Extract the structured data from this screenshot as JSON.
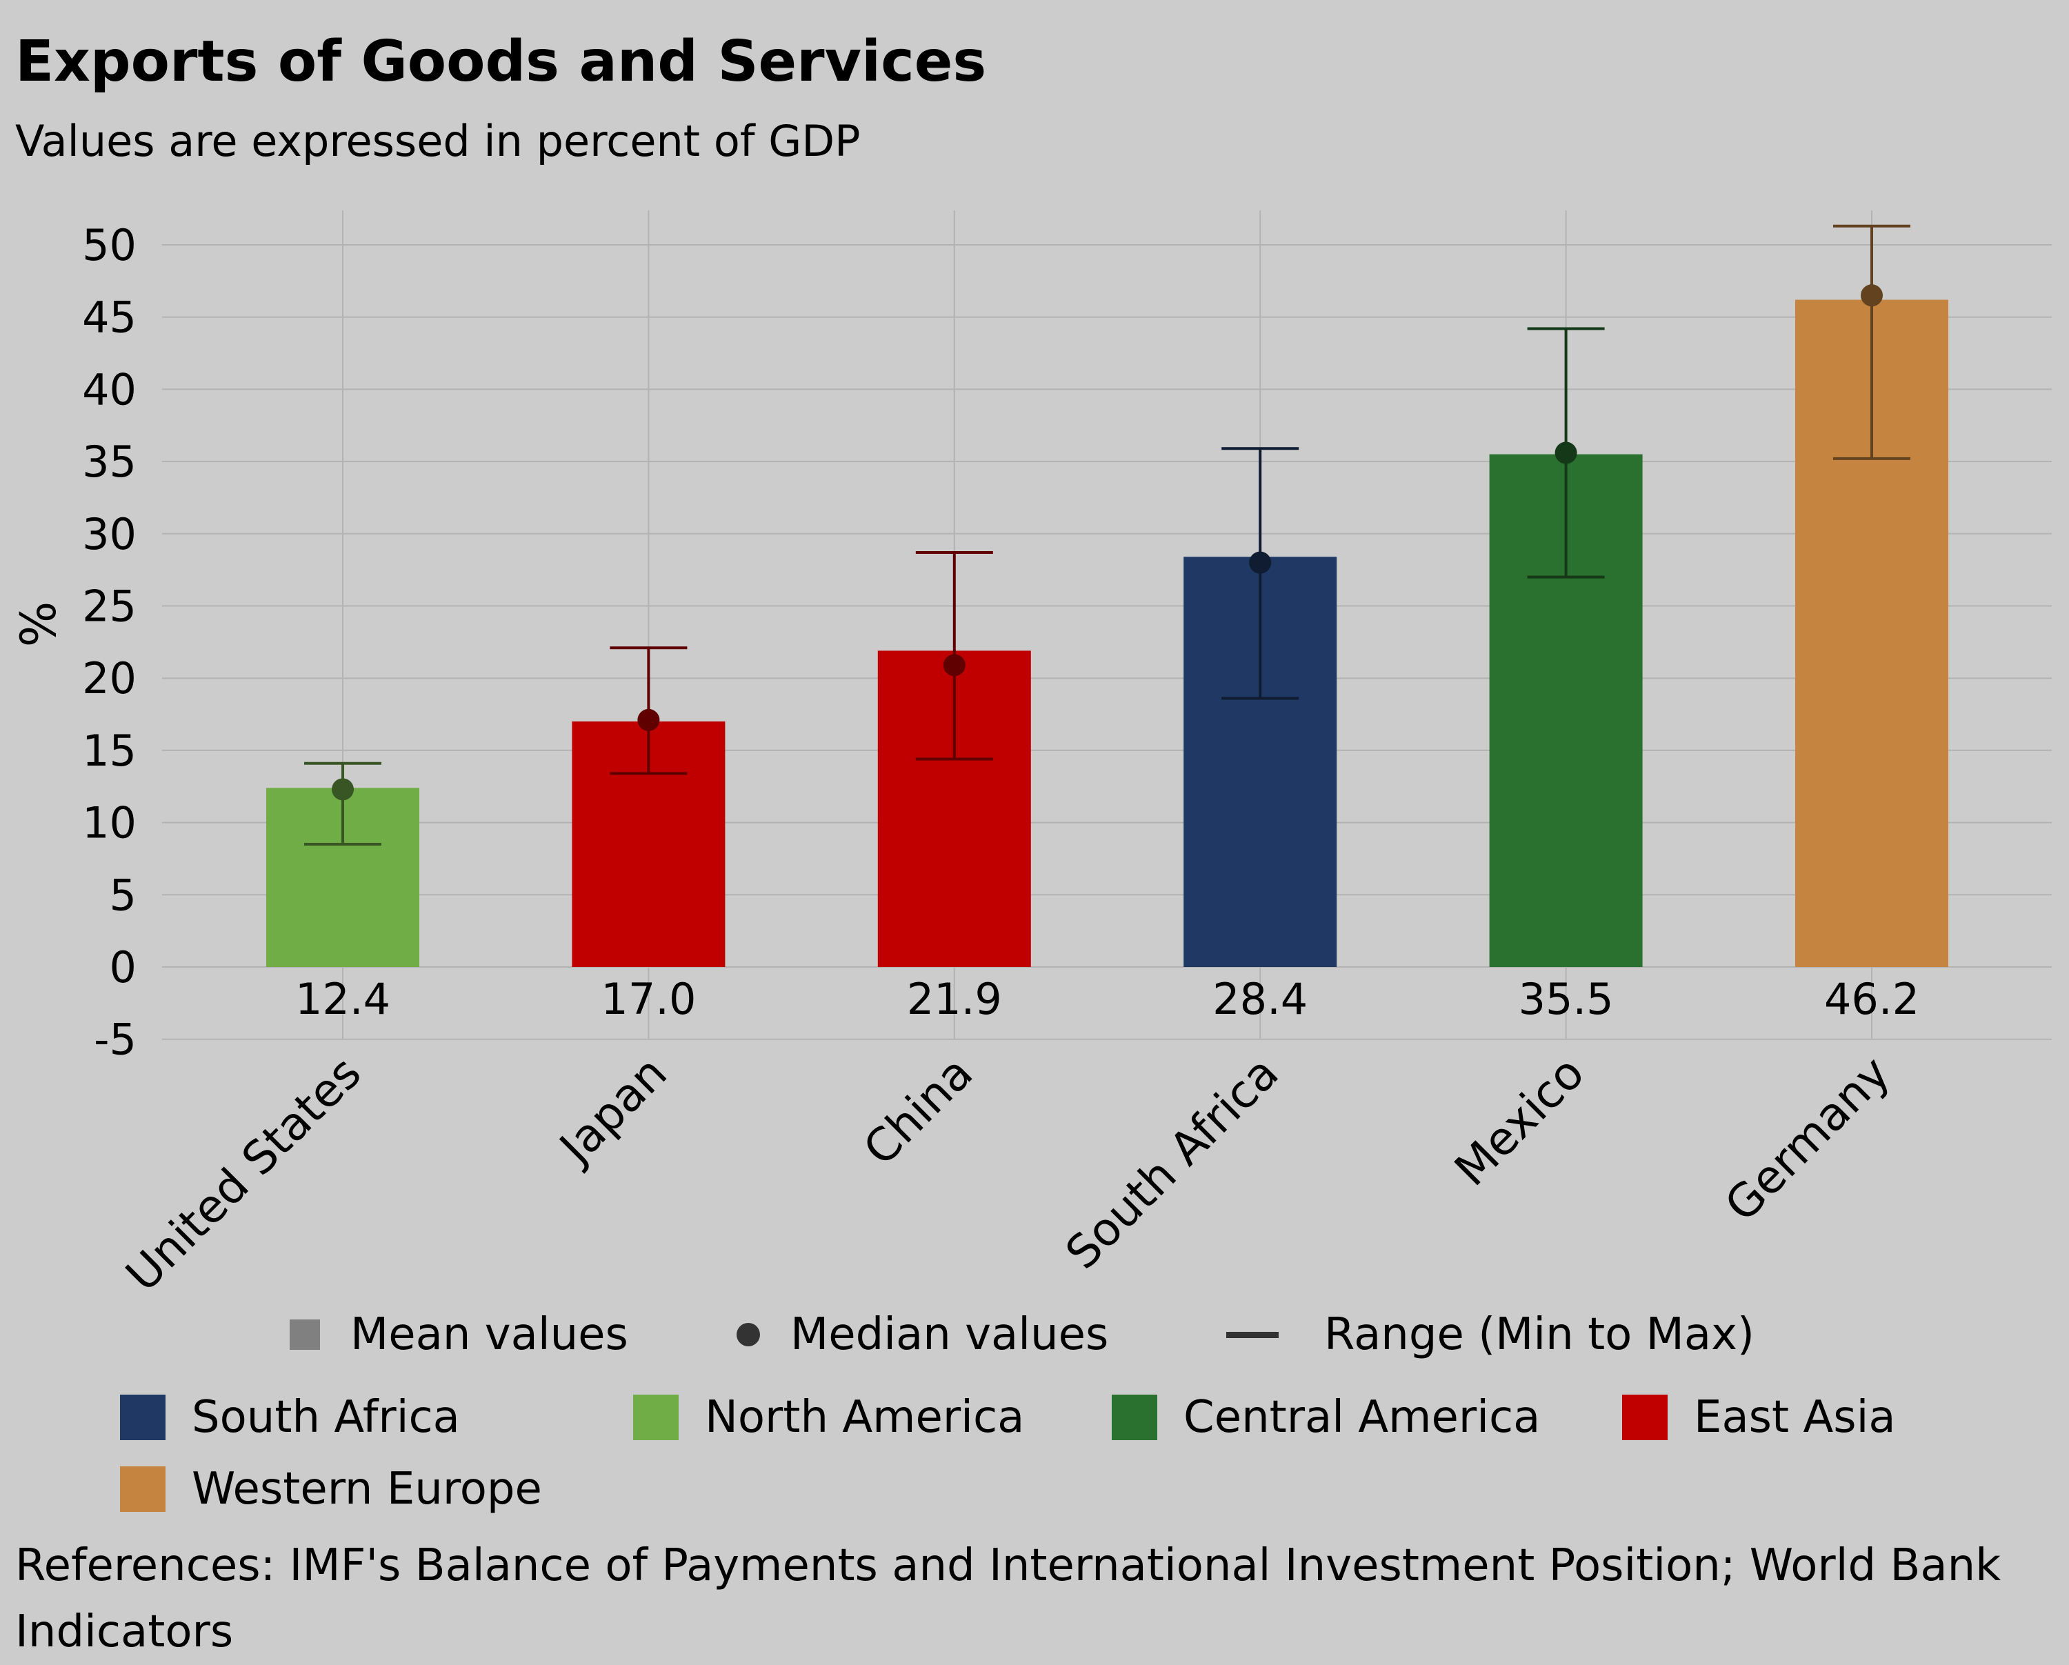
{
  "title": "Exports of Goods and Services",
  "subtitle": "Values are expressed in percent of GDP",
  "chart_data": {
    "type": "bar",
    "ylabel": "%",
    "ylim": [
      -5,
      52.5
    ],
    "yticks": [
      -5,
      0,
      5,
      10,
      15,
      20,
      25,
      30,
      35,
      40,
      45,
      50
    ],
    "grid": true,
    "categories": [
      "United States",
      "Japan",
      "China",
      "South Africa",
      "Mexico",
      "Germany"
    ],
    "values": [
      12.4,
      17.0,
      21.9,
      28.4,
      35.5,
      46.2
    ],
    "value_labels": [
      "12.4",
      "17.0",
      "21.9",
      "28.4",
      "35.5",
      "46.2"
    ],
    "medians": [
      12.3,
      17.1,
      20.9,
      28.0,
      35.6,
      46.5
    ],
    "range_min": [
      8.5,
      13.4,
      14.4,
      18.6,
      27.0,
      35.2
    ],
    "range_max": [
      14.1,
      22.1,
      28.7,
      35.9,
      44.2,
      51.3
    ],
    "bar_colors": [
      "#70ad47",
      "#c00000",
      "#c00000",
      "#1f3864",
      "#2a7130",
      "#c5843f"
    ],
    "marker_colors": [
      "#375623",
      "#600000",
      "#600000",
      "#0f1c32",
      "#153818",
      "#62421f"
    ],
    "legend_markers": [
      {
        "label": "Mean values",
        "icon": "square"
      },
      {
        "label": "Median values",
        "icon": "circle"
      },
      {
        "label": "Range (Min to Max)",
        "icon": "line"
      }
    ],
    "legend_regions": [
      {
        "label": "South Africa",
        "color": "#1f3864"
      },
      {
        "label": "North America",
        "color": "#70ad47"
      },
      {
        "label": "Central America",
        "color": "#2a7130"
      },
      {
        "label": "East Asia",
        "color": "#c00000"
      },
      {
        "label": "Western Europe",
        "color": "#c5843f"
      }
    ]
  },
  "references": "References: IMF's Balance of Payments and International Investment Position; World Bank Indicators"
}
